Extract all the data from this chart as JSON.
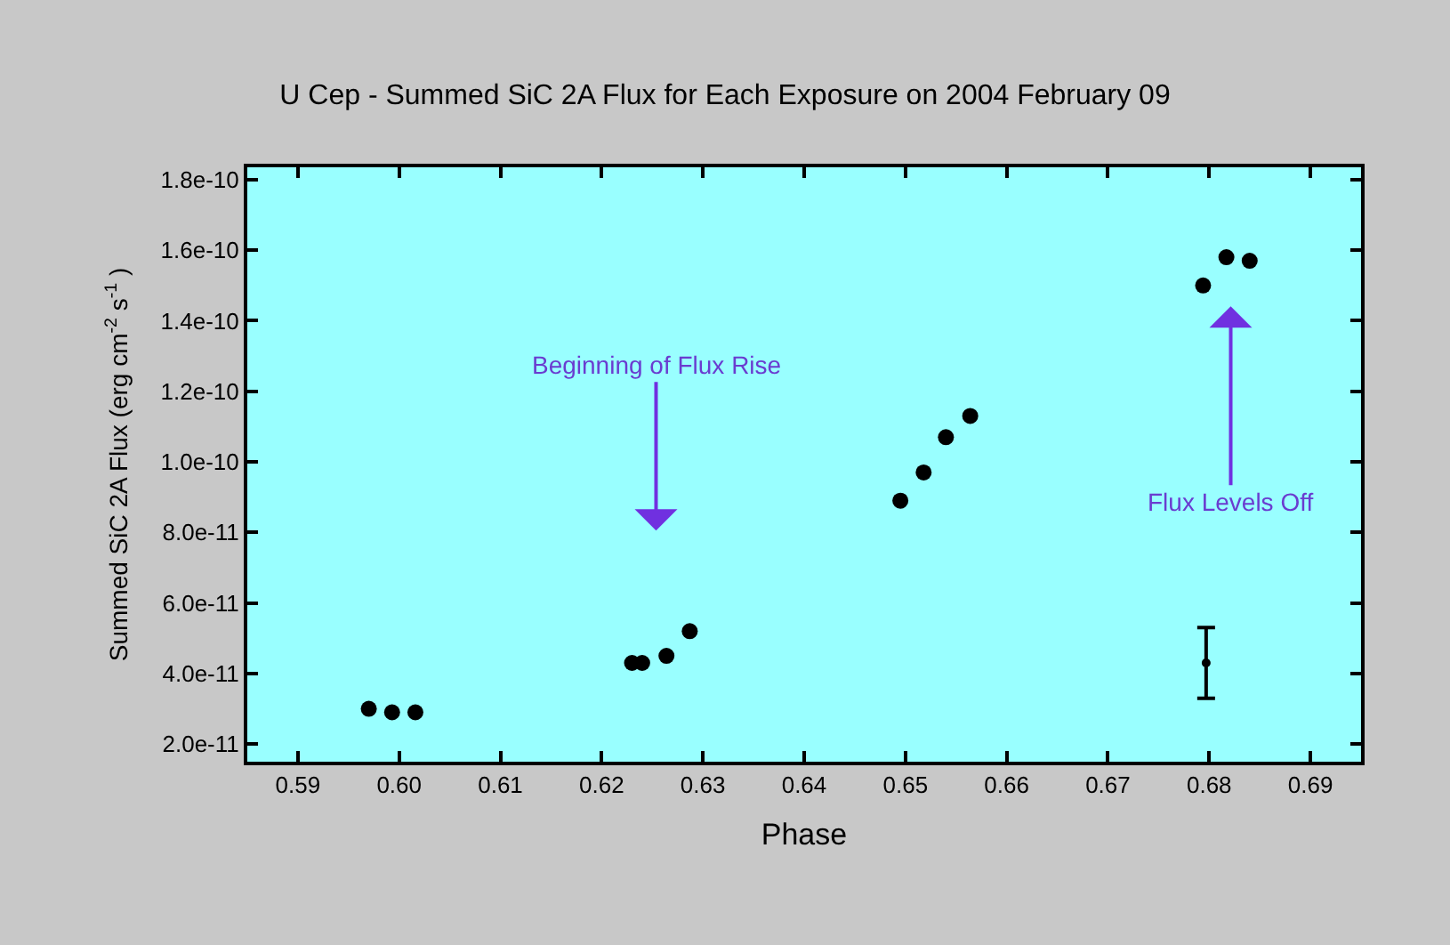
{
  "chart_data": {
    "type": "scatter",
    "title": "U Cep - Summed SiC 2A Flux for Each Exposure on 2004 February 09",
    "xlabel": "Phase",
    "ylabel": "Summed SiC 2A Flux (erg cm$^{-2}$ s$^{-1}$ )",
    "series": [
      {
        "color": "#000000",
        "marker": "circle",
        "x": [
          0.597,
          0.5993,
          0.6016,
          0.623,
          0.624,
          0.6264,
          0.6287,
          0.6495,
          0.6518,
          0.654,
          0.6564,
          0.6794,
          0.6817,
          0.684
        ],
        "values": [
          3e-11,
          2.9e-11,
          2.9e-11,
          4.3e-11,
          4.3e-11,
          4.5e-11,
          5.2e-11,
          8.9e-11,
          9.7e-11,
          1.07e-10,
          1.13e-10,
          1.5e-10,
          1.58e-10,
          1.57e-10
        ]
      },
      {
        "color": "#000000",
        "x": [
          0.6797
        ],
        "values": [
          4.3e-11
        ],
        "errors": [
          [
            3.3e-11,
            5.3e-11
          ]
        ]
      }
    ],
    "annotations": [
      "Beginning of Flux Rise",
      "Flux Levels Off"
    ],
    "xlim": [
      0.585,
      0.695
    ],
    "ylim": [
      1.5e-11,
      1.835e-10
    ],
    "xticks": [
      {
        "value": 0.59,
        "label": "0.59"
      },
      {
        "value": 0.6,
        "label": "0.60"
      },
      {
        "value": 0.61,
        "label": "0.61"
      },
      {
        "value": 0.62,
        "label": "0.62"
      },
      {
        "value": 0.63,
        "label": "0.63"
      },
      {
        "value": 0.64,
        "label": "0.64"
      },
      {
        "value": 0.65,
        "label": "0.65"
      },
      {
        "value": 0.66,
        "label": "0.66"
      },
      {
        "value": 0.67,
        "label": "0.67"
      },
      {
        "value": 0.68,
        "label": "0.68"
      },
      {
        "value": 0.69,
        "label": "0.69"
      }
    ],
    "yticks": [
      {
        "value": 2e-11,
        "label": "2.0e-11"
      },
      {
        "value": 4e-11,
        "label": "4.0e-11"
      },
      {
        "value": 6e-11,
        "label": "6.0e-11"
      },
      {
        "value": 8e-11,
        "label": "8.0e-11"
      },
      {
        "value": 1e-10,
        "label": "1.0e-10"
      },
      {
        "value": 1.2e-10,
        "label": "1.2e-10"
      },
      {
        "value": 1.4e-10,
        "label": "1.4e-10"
      },
      {
        "value": 1.6e-10,
        "label": "1.6e-10"
      },
      {
        "value": 1.8e-10,
        "label": "1.8e-10"
      }
    ],
    "grid": false,
    "legend": false
  }
}
